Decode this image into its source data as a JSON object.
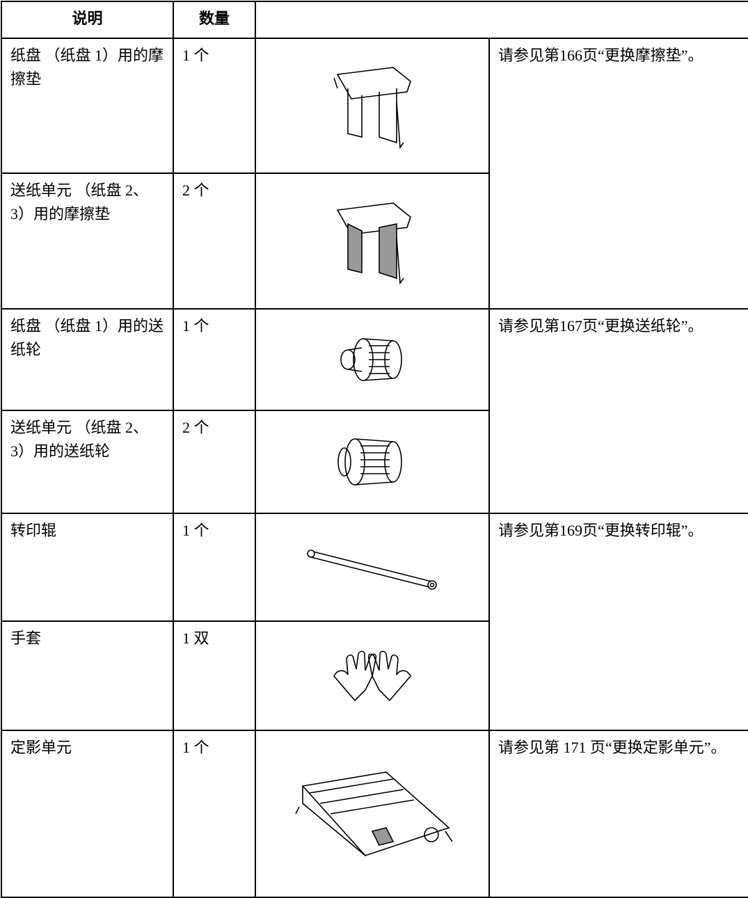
{
  "table": {
    "header": [
      "说明",
      "数量"
    ],
    "rows": [
      {
        "description": "纸盘 （纸盘 1）用的摩擦垫",
        "quantity": "1 个",
        "reference": "请参见第166页“更换摩擦垫”。"
      },
      {
        "description": "送纸单元 （纸盘 2、 3）用的摩擦垫",
        "quantity": "2 个"
      },
      {
        "description": "纸盘 （纸盘 1）用的送纸轮",
        "quantity": "1 个",
        "reference": "请参见第167页“更换送纸轮”。"
      },
      {
        "description": "送纸单元 （纸盘 2、 3）用的送纸轮",
        "quantity": "2 个"
      },
      {
        "description": "转印辊",
        "quantity": "1 个",
        "reference": "请参见第169页“更换转印辊”。"
      },
      {
        "description": "手套",
        "quantity": "1 双"
      },
      {
        "description": "定影单元",
        "quantity": "1 个",
        "reference": "请参见第 171 页“更换定影单元”。"
      }
    ]
  }
}
